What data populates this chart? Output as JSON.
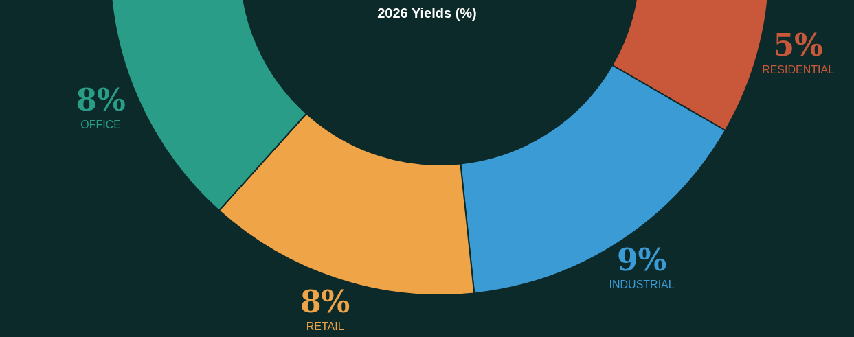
{
  "chart_data": {
    "type": "donut",
    "title": "2026 Yields (%)",
    "categories": [
      "RESIDENTIAL",
      "INDUSTRIAL",
      "RETAIL",
      "OFFICE"
    ],
    "values": [
      5,
      9,
      8,
      8
    ],
    "colors": [
      "#c9583a",
      "#3a9bd5",
      "#f0a448",
      "#2a9d88"
    ],
    "value_labels": [
      "5%",
      "9%",
      "8%",
      "8%"
    ]
  }
}
